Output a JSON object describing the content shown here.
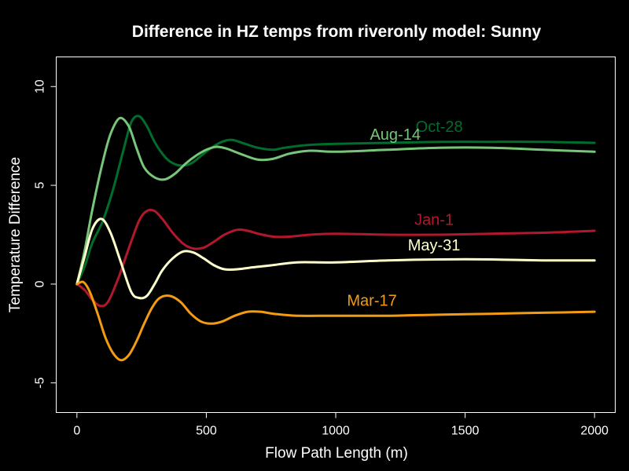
{
  "chart_data": {
    "type": "line",
    "title": "Difference in HZ temps from riveronly model: Sunny",
    "xlabel": "Flow Path Length (m)",
    "ylabel": "Temperature Difference",
    "xlim": [
      -80,
      2080
    ],
    "ylim": [
      -6.5,
      11.5
    ],
    "xticks": [
      0,
      500,
      1000,
      1500,
      2000
    ],
    "yticks": [
      -5,
      0,
      5,
      10
    ],
    "ytick_labels": [
      "-5",
      "0",
      "5",
      "10"
    ],
    "grid": false,
    "legend": "none",
    "series": [
      {
        "name": "Oct-28",
        "color": "#006d2c",
        "label_at": [
          1400,
          7.7
        ],
        "x": [
          0,
          30,
          60,
          100,
          140,
          180,
          210,
          240,
          270,
          300,
          330,
          360,
          400,
          440,
          480,
          520,
          560,
          600,
          650,
          700,
          760,
          800,
          900,
          1000,
          1200,
          1400,
          1600,
          1800,
          2000
        ],
        "y": [
          0,
          0.9,
          2.1,
          3.2,
          4.8,
          6.8,
          8.2,
          8.5,
          8.0,
          7.2,
          6.6,
          6.2,
          6.0,
          6.1,
          6.5,
          6.9,
          7.2,
          7.3,
          7.1,
          6.9,
          6.8,
          6.9,
          7.05,
          7.1,
          7.15,
          7.2,
          7.2,
          7.2,
          7.15
        ]
      },
      {
        "name": "Aug-14",
        "color": "#78c679",
        "label_at": [
          1230,
          7.3
        ],
        "x": [
          0,
          30,
          60,
          100,
          130,
          165,
          200,
          230,
          260,
          300,
          340,
          380,
          420,
          460,
          500,
          540,
          580,
          630,
          700,
          760,
          820,
          900,
          1000,
          1200,
          1400,
          1600,
          1800,
          2000
        ],
        "y": [
          0,
          1.7,
          3.8,
          6.2,
          7.6,
          8.4,
          8.0,
          6.9,
          5.9,
          5.4,
          5.3,
          5.6,
          6.1,
          6.5,
          6.8,
          6.95,
          6.85,
          6.6,
          6.3,
          6.35,
          6.6,
          6.75,
          6.7,
          6.8,
          6.9,
          6.9,
          6.8,
          6.7
        ]
      },
      {
        "name": "Jan-1",
        "color": "#b2182b",
        "label_at": [
          1380,
          3.0
        ],
        "x": [
          0,
          30,
          60,
          90,
          120,
          160,
          200,
          240,
          270,
          300,
          330,
          370,
          410,
          450,
          490,
          530,
          570,
          620,
          660,
          700,
          760,
          820,
          900,
          1000,
          1200,
          1400,
          1600,
          1800,
          2000
        ],
        "y": [
          0,
          -0.3,
          -0.8,
          -1.1,
          -0.9,
          0.3,
          1.8,
          3.2,
          3.7,
          3.7,
          3.3,
          2.6,
          2.05,
          1.8,
          1.85,
          2.15,
          2.5,
          2.75,
          2.7,
          2.55,
          2.4,
          2.4,
          2.5,
          2.55,
          2.5,
          2.5,
          2.55,
          2.6,
          2.7
        ]
      },
      {
        "name": "May-31",
        "color": "#ffffcc",
        "label_at": [
          1380,
          1.7
        ],
        "x": [
          0,
          30,
          60,
          95,
          130,
          170,
          210,
          240,
          270,
          300,
          330,
          370,
          410,
          450,
          490,
          530,
          570,
          620,
          680,
          750,
          850,
          1000,
          1200,
          1400,
          1600,
          1800,
          2000
        ],
        "y": [
          0,
          1.4,
          2.8,
          3.3,
          2.6,
          1.1,
          -0.4,
          -0.7,
          -0.6,
          0.0,
          0.7,
          1.3,
          1.65,
          1.6,
          1.3,
          0.95,
          0.75,
          0.75,
          0.85,
          0.95,
          1.1,
          1.1,
          1.2,
          1.25,
          1.25,
          1.2,
          1.2
        ]
      },
      {
        "name": "Mar-17",
        "color": "#f39c12",
        "label_at": [
          1140,
          -1.1
        ],
        "x": [
          0,
          25,
          50,
          80,
          110,
          140,
          170,
          200,
          230,
          260,
          290,
          320,
          360,
          400,
          440,
          480,
          520,
          560,
          610,
          660,
          710,
          760,
          850,
          1000,
          1200,
          1400,
          1600,
          1800,
          2000
        ],
        "y": [
          0,
          0.1,
          -0.4,
          -1.5,
          -2.7,
          -3.5,
          -3.85,
          -3.6,
          -2.9,
          -2.0,
          -1.2,
          -0.7,
          -0.6,
          -0.9,
          -1.5,
          -1.9,
          -2.0,
          -1.9,
          -1.6,
          -1.4,
          -1.4,
          -1.5,
          -1.6,
          -1.6,
          -1.6,
          -1.55,
          -1.5,
          -1.45,
          -1.4
        ]
      }
    ]
  }
}
